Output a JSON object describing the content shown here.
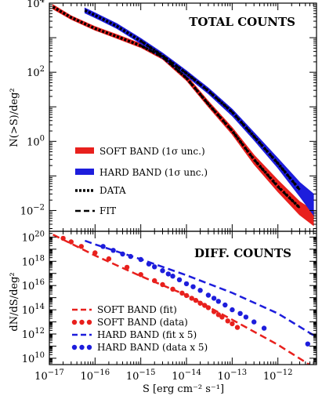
{
  "chart_data": [
    {
      "type": "line",
      "panel": "top",
      "title": "TOTAL COUNTS",
      "ylabel": "N(>S)/deg²",
      "xlabel": "",
      "x_scale": "log",
      "y_scale": "log",
      "xlim": [
        1e-17,
        7e-12
      ],
      "ylim": [
        0.0025,
        10000
      ],
      "y_ticks": [
        {
          "value": 10000,
          "mant": "10",
          "exp": "4"
        },
        {
          "value": 100,
          "mant": "10",
          "exp": "2"
        },
        {
          "value": 1,
          "mant": "10",
          "exp": "0"
        },
        {
          "value": 0.01,
          "mant": "10",
          "exp": "−2"
        }
      ],
      "legend_position": "lower-left",
      "legend": [
        {
          "label": "SOFT BAND (1σ unc.)",
          "style": "band",
          "color": "#e8201d"
        },
        {
          "label": "HARD BAND (1σ unc.)",
          "style": "band",
          "color": "#1d1ddc"
        },
        {
          "label": "DATA",
          "style": "dotted",
          "color": "#000000"
        },
        {
          "label": "FIT",
          "style": "dashed",
          "color": "#000000"
        }
      ],
      "series": [
        {
          "name": "SOFT BAND (1σ unc.)",
          "kind": "band",
          "color": "#e8201d",
          "x": [
            1.2e-17,
            3e-17,
            1e-16,
            3e-16,
            1e-15,
            3e-15,
            1e-14,
            3e-14,
            1e-13,
            3e-13,
            1e-12,
            3e-12,
            6e-12
          ],
          "lo": [
            6800,
            3400,
            1650,
            960,
            520,
            240,
            58,
            10,
            1.6,
            0.22,
            0.035,
            0.0075,
            0.0037
          ],
          "hi": [
            9000,
            4300,
            2100,
            1230,
            670,
            320,
            80,
            14.5,
            2.5,
            0.4,
            0.075,
            0.018,
            0.01
          ]
        },
        {
          "name": "HARD BAND (1σ unc.)",
          "kind": "band",
          "color": "#1d1ddc",
          "x": [
            6e-17,
            1e-16,
            3e-16,
            1e-15,
            3e-15,
            1e-14,
            3e-14,
            1e-13,
            3e-13,
            1e-12,
            3e-12,
            6e-12
          ],
          "lo": [
            5200,
            3800,
            1850,
            680,
            250,
            78,
            24,
            5.5,
            1.1,
            0.17,
            0.026,
            0.0075
          ],
          "hi": [
            7200,
            5200,
            2550,
            950,
            360,
            110,
            35,
            8.5,
            1.8,
            0.32,
            0.065,
            0.03
          ]
        },
        {
          "name": "DATA (soft)",
          "kind": "dotted",
          "color": "#000000",
          "x": [
            1.2e-17,
            3e-17,
            1e-16,
            3e-16,
            1e-15,
            3e-15,
            1e-14,
            3e-14,
            1e-13,
            3e-13,
            1e-12,
            3e-12
          ],
          "y": [
            7800,
            3850,
            1850,
            1080,
            590,
            275,
            68,
            12,
            2.0,
            0.3,
            0.05,
            0.012
          ]
        },
        {
          "name": "DATA (hard)",
          "kind": "dotted",
          "color": "#000000",
          "x": [
            6e-17,
            1e-16,
            3e-16,
            1e-15,
            3e-15,
            1e-14,
            3e-14,
            1e-13,
            3e-13,
            1e-12,
            3e-12
          ],
          "y": [
            6200,
            4450,
            2150,
            800,
            300,
            93,
            29,
            7.0,
            1.4,
            0.23,
            0.04
          ]
        },
        {
          "name": "FIT (soft)",
          "kind": "dashed",
          "color": "#000000",
          "x": [
            1e-15,
            3e-15,
            1e-14,
            3e-14,
            1e-13,
            3e-13,
            1e-12,
            3e-12
          ],
          "y": [
            590,
            275,
            68,
            12,
            2.0,
            0.3,
            0.048,
            0.012
          ]
        },
        {
          "name": "FIT (hard)",
          "kind": "dashed",
          "color": "#000000",
          "x": [
            1e-15,
            3e-15,
            1e-14,
            3e-14,
            1e-13,
            3e-13,
            1e-12,
            3e-12
          ],
          "y": [
            800,
            300,
            93,
            29,
            7.0,
            1.4,
            0.23,
            0.04
          ]
        }
      ]
    },
    {
      "type": "scatter",
      "panel": "bottom",
      "title": "DIFF. COUNTS",
      "ylabel": "dN/dS/deg²",
      "xlabel": "S [erg cm⁻² s⁻¹]",
      "x_scale": "log",
      "y_scale": "log",
      "xlim": [
        1e-17,
        7e-12
      ],
      "ylim": [
        3000000000.0,
        3e+20
      ],
      "x_ticks": [
        {
          "value": 1e-17,
          "mant": "10",
          "exp": "−17"
        },
        {
          "value": 1e-16,
          "mant": "10",
          "exp": "−16"
        },
        {
          "value": 1e-15,
          "mant": "10",
          "exp": "−15"
        },
        {
          "value": 1e-14,
          "mant": "10",
          "exp": "−14"
        },
        {
          "value": 1e-13,
          "mant": "10",
          "exp": "−13"
        },
        {
          "value": 1e-12,
          "mant": "10",
          "exp": "−12"
        }
      ],
      "y_ticks": [
        {
          "value": 1e+20,
          "mant": "10",
          "exp": "20"
        },
        {
          "value": 1e+18,
          "mant": "10",
          "exp": "18"
        },
        {
          "value": 1e+16,
          "mant": "10",
          "exp": "16"
        },
        {
          "value": 100000000000000.0,
          "mant": "10",
          "exp": "14"
        },
        {
          "value": 1000000000000.0,
          "mant": "10",
          "exp": "12"
        },
        {
          "value": 10000000000.0,
          "mant": "10",
          "exp": "10"
        }
      ],
      "legend_position": "lower-left",
      "legend": [
        {
          "label": "SOFT BAND (fit)",
          "style": "dashed",
          "color": "#e8201d"
        },
        {
          "label": "SOFT BAND (data)",
          "style": "dots",
          "color": "#e8201d"
        },
        {
          "label": "HARD BAND (fit x 5)",
          "style": "dashed",
          "color": "#1d1ddc"
        },
        {
          "label": "HARD BAND (data x 5)",
          "style": "dots",
          "color": "#1d1ddc"
        }
      ],
      "series": [
        {
          "name": "SOFT BAND (fit)",
          "kind": "dashed",
          "color": "#e8201d",
          "x": [
            1.2e-17,
            1e-16,
            1e-15,
            1e-14,
            1e-13,
            1e-12,
            6e-12
          ],
          "y": [
            1.6e+20,
            3e+18,
            6e+16,
            1600000000000000.0,
            15000000000000.0,
            130000000000.0,
            1800000000.0
          ]
        },
        {
          "name": "SOFT BAND (data)",
          "kind": "dots",
          "color": "#e8201d",
          "x": [
            2e-17,
            3e-17,
            5e-17,
            1e-16,
            2e-16,
            5e-16,
            1e-15,
            2e-15,
            3e-15,
            5e-15,
            8e-15,
            1e-14,
            1.3e-14,
            1.6e-14,
            2e-14,
            2.5e-14,
            3e-14,
            4e-14,
            5e-14,
            6e-14,
            8e-14,
            1e-13,
            1.3e-13
          ],
          "y": [
            8e+19,
            4e+19,
            1.7e+19,
            5e+18,
            1.6e+18,
            3.2e+17,
            8e+16,
            2.5e+16,
            1.2e+16,
            5000000000000000.0,
            2400000000000000.0,
            1500000000000000.0,
            900000000000000.0,
            600000000000000.0,
            350000000000000.0,
            230000000000000.0,
            150000000000000.0,
            70000000000000.0,
            40000000000000.0,
            25000000000000.0,
            12000000000000.0,
            7000000000000.0,
            3500000000000.0
          ]
        },
        {
          "name": "HARD BAND (fit x 5)",
          "kind": "dashed",
          "color": "#1d1ddc",
          "x": [
            6e-17,
            1e-16,
            1e-15,
            1e-14,
            1e-13,
            1e-12,
            6e-12
          ],
          "y": [
            5e+19,
            2.5e+19,
            1.5e+18,
            7e+16,
            2500000000000000.0,
            50000000000000.0,
            800000000000.0
          ]
        },
        {
          "name": "HARD BAND (data x 5)",
          "kind": "dots",
          "color": "#1d1ddc",
          "x": [
            1.5e-16,
            2.5e-16,
            4e-16,
            6e-16,
            1e-15,
            1.5e-15,
            2e-15,
            3e-15,
            4e-15,
            5e-15,
            7e-15,
            1e-14,
            1.4e-14,
            2e-14,
            3e-14,
            4e-14,
            5e-14,
            7e-14,
            1e-13,
            1.5e-13,
            2e-13,
            3e-13,
            5e-13,
            4.5e-12
          ],
          "y": [
            1.7e+19,
            8e+18,
            4e+18,
            2.5e+18,
            1.4e+18,
            6e+17,
            3.5e+17,
            1.7e+17,
            9e+16,
            6e+16,
            3e+16,
            1.4e+16,
            8000000000000000.0,
            4000000000000000.0,
            1600000000000000.0,
            900000000000000.0,
            500000000000000.0,
            250000000000000.0,
            100000000000000.0,
            50000000000000.0,
            25000000000000.0,
            10000000000000.0,
            3000000000000.0,
            150000000000.0
          ]
        }
      ]
    }
  ]
}
